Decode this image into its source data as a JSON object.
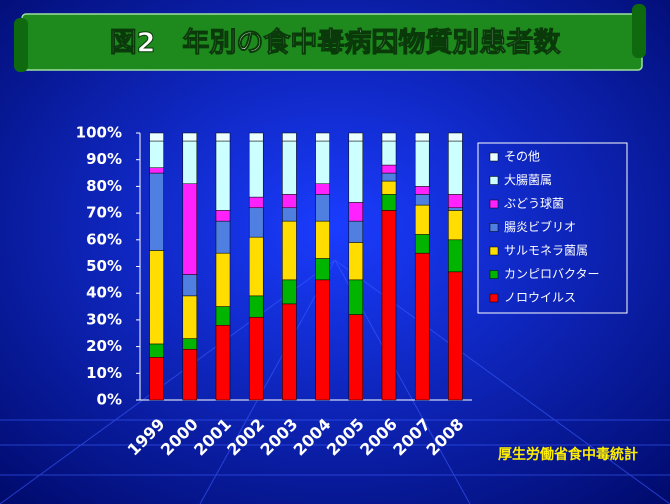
{
  "chart_data": {
    "type": "bar",
    "stacked": true,
    "title": "図2　年別の食中毒病因物質別患者数",
    "source": "厚生労働省食中毒統計",
    "categories": [
      "1999",
      "2000",
      "2001",
      "2002",
      "2003",
      "2004",
      "2005",
      "2006",
      "2007",
      "2008"
    ],
    "series": [
      {
        "name": "ノロウイルス",
        "color": "#ff0000",
        "values": [
          16,
          19,
          28,
          31,
          36,
          45,
          32,
          71,
          55,
          48
        ]
      },
      {
        "name": "カンピロバクター",
        "color": "#00b400",
        "values": [
          5,
          4,
          7,
          8,
          9,
          8,
          13,
          6,
          7,
          12
        ]
      },
      {
        "name": "サルモネラ菌属",
        "color": "#ffdd00",
        "values": [
          35,
          16,
          20,
          22,
          22,
          14,
          14,
          5,
          11,
          11
        ]
      },
      {
        "name": "腸炎ビブリオ",
        "color": "#4f7fe0",
        "values": [
          29,
          8,
          12,
          11,
          5,
          10,
          8,
          3,
          4,
          1
        ]
      },
      {
        "name": "ぶどう球菌",
        "color": "#ff22ff",
        "values": [
          2,
          34,
          4,
          4,
          5,
          4,
          7,
          3,
          3,
          5
        ]
      },
      {
        "name": "大腸菌属",
        "color": "#ccffff",
        "values": [
          10,
          16,
          26,
          21,
          20,
          16,
          23,
          9,
          17,
          20
        ]
      },
      {
        "name": "その他",
        "color": "#eaffff",
        "values": [
          3,
          3,
          3,
          3,
          3,
          3,
          3,
          3,
          3,
          3
        ]
      }
    ],
    "ylim": [
      0,
      100
    ],
    "yticks": [
      {
        "value": 0,
        "label": "0%"
      },
      {
        "value": 10,
        "label": "10%"
      },
      {
        "value": 20,
        "label": "20%"
      },
      {
        "value": 30,
        "label": "30%"
      },
      {
        "value": 40,
        "label": "40%"
      },
      {
        "value": 50,
        "label": "50%"
      },
      {
        "value": 60,
        "label": "60%"
      },
      {
        "value": 70,
        "label": "70%"
      },
      {
        "value": 80,
        "label": "80%"
      },
      {
        "value": 90,
        "label": "90%"
      },
      {
        "value": 100,
        "label": "100%"
      }
    ],
    "legend": "right"
  }
}
